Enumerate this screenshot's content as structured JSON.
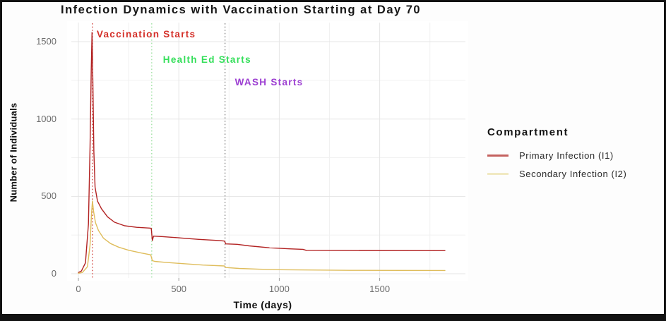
{
  "title": "Infection Dynamics with Vaccination Starting at Day 70",
  "axes": {
    "x": {
      "label": "Time (days)",
      "ticks": [
        0,
        500,
        1000,
        1500
      ]
    },
    "y": {
      "label": "Number of Individuals",
      "ticks": [
        0,
        500,
        1000,
        1500
      ]
    }
  },
  "legend": {
    "title": "Compartment",
    "items": [
      {
        "label": "Primary Infection (I1)",
        "key_color": "#c4625f"
      },
      {
        "label": "Secondary Infection (I2)",
        "key_color": "#f1e9c2"
      }
    ]
  },
  "chart_data": {
    "type": "line",
    "title": "Infection Dynamics with Vaccination Starting at Day 70",
    "xlabel": "Time (days)",
    "ylabel": "Number of Individuals",
    "xlim": [
      0,
      1940
    ],
    "ylim": [
      0,
      1640
    ],
    "x_ticks": [
      0,
      500,
      1000,
      1500
    ],
    "y_ticks": [
      0,
      500,
      1000,
      1500
    ],
    "grid": "major and minor gridlines every 250 units, light gray on white",
    "legend_position": "right",
    "legend_title": "Compartment",
    "events": [
      {
        "label": "Vaccination Starts",
        "day": 70,
        "text_color": "#d42f28",
        "line_color": "#d24a45",
        "label_dx": 6,
        "label_y": 11
      },
      {
        "label": "Health Ed Starts",
        "day": 365,
        "text_color": "#35df5b",
        "line_color": "#a2e2a6",
        "label_dx": 16,
        "label_y": 47
      },
      {
        "label": "WASH Starts",
        "day": 730,
        "text_color": "#9c3ed2",
        "line_color": "#8c8c8c",
        "label_dx": 14,
        "label_y": 79
      }
    ],
    "series": [
      {
        "name": "Primary Infection (I1)",
        "color": "#b22222",
        "points": [
          [
            0,
            8
          ],
          [
            15,
            18
          ],
          [
            35,
            70
          ],
          [
            50,
            320
          ],
          [
            58,
            820
          ],
          [
            64,
            1320
          ],
          [
            68,
            1560
          ],
          [
            72,
            1240
          ],
          [
            77,
            790
          ],
          [
            83,
            560
          ],
          [
            95,
            470
          ],
          [
            115,
            420
          ],
          [
            145,
            368
          ],
          [
            180,
            333
          ],
          [
            230,
            310
          ],
          [
            290,
            300
          ],
          [
            355,
            295
          ],
          [
            363,
            293
          ],
          [
            368,
            215
          ],
          [
            374,
            243
          ],
          [
            420,
            240
          ],
          [
            500,
            232
          ],
          [
            600,
            222
          ],
          [
            700,
            215
          ],
          [
            727,
            211
          ],
          [
            734,
            193
          ],
          [
            790,
            190
          ],
          [
            850,
            180
          ],
          [
            950,
            168
          ],
          [
            1050,
            161
          ],
          [
            1118,
            158
          ],
          [
            1135,
            151
          ],
          [
            1300,
            150
          ],
          [
            1825,
            149
          ]
        ]
      },
      {
        "name": "Secondary Infection (I2)",
        "color": "#dfbd5c",
        "points": [
          [
            0,
            3
          ],
          [
            20,
            8
          ],
          [
            45,
            45
          ],
          [
            58,
            185
          ],
          [
            65,
            385
          ],
          [
            70,
            470
          ],
          [
            76,
            400
          ],
          [
            85,
            330
          ],
          [
            100,
            280
          ],
          [
            125,
            230
          ],
          [
            160,
            195
          ],
          [
            200,
            172
          ],
          [
            250,
            152
          ],
          [
            310,
            135
          ],
          [
            360,
            122
          ],
          [
            368,
            85
          ],
          [
            380,
            80
          ],
          [
            430,
            74
          ],
          [
            520,
            65
          ],
          [
            620,
            56
          ],
          [
            727,
            50
          ],
          [
            735,
            40
          ],
          [
            800,
            34
          ],
          [
            900,
            29
          ],
          [
            1000,
            26
          ],
          [
            1150,
            24
          ],
          [
            1350,
            22
          ],
          [
            1825,
            21
          ]
        ]
      }
    ]
  }
}
